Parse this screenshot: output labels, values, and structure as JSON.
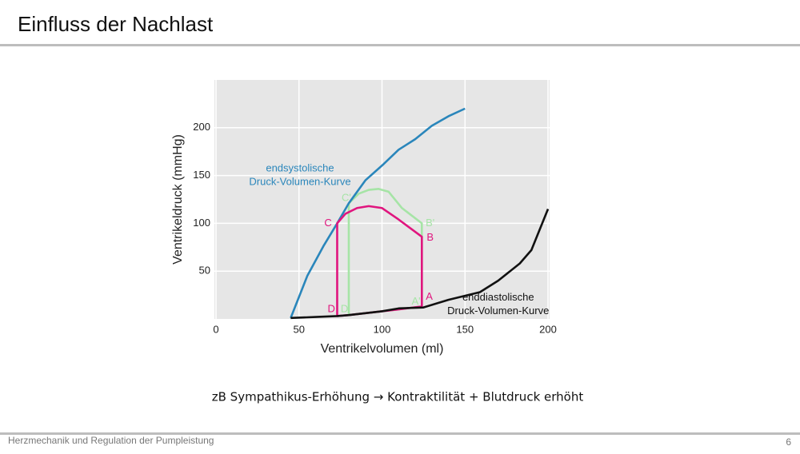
{
  "slide": {
    "title": "Einfluss der Nachlast",
    "caption": "zB  Sympathikus-Erhöhung  → Kontraktilität + Blutdruck erhöht",
    "footer": "Herzmechanik und Regulation der Pumpleistung",
    "page": "6"
  },
  "chart_data": {
    "type": "line",
    "xlabel": "Ventrikelvolumen (ml)",
    "ylabel": "Ventrikeldruck (mmHg)",
    "xlim": [
      0,
      200
    ],
    "ylim": [
      0,
      250
    ],
    "xticks": [
      0,
      50,
      100,
      150,
      200
    ],
    "yticks": [
      50,
      100,
      150,
      200
    ],
    "grid": true,
    "series": [
      {
        "color": "#a6e4a6",
        "x": [
          80,
          80,
          86,
          92,
          98,
          104,
          112,
          124,
          124,
          110,
          100,
          90,
          80
        ],
        "values": [
          4,
          121,
          131,
          135,
          136,
          133,
          116,
          100,
          13,
          10,
          8,
          6,
          4
        ]
      },
      {
        "color": "#2a86bb",
        "x": [
          45,
          55,
          65,
          73,
          80,
          90,
          101,
          110,
          120,
          130,
          140,
          150
        ],
        "values": [
          1,
          45,
          77,
          100,
          121,
          145,
          162,
          177,
          188,
          202,
          212,
          220
        ]
      },
      {
        "color": "#e0157e",
        "x": [
          73,
          73,
          78,
          85,
          92,
          100,
          110,
          124,
          124,
          110,
          100,
          90,
          80,
          73
        ],
        "values": [
          3,
          100,
          110,
          116,
          118,
          116,
          104,
          86,
          13,
          10,
          8,
          6,
          4,
          3
        ]
      },
      {
        "color": "#111111",
        "x": [
          45,
          60,
          73,
          80,
          90,
          100,
          110,
          125,
          140,
          159,
          170,
          183,
          190,
          200
        ],
        "values": [
          1,
          2,
          3,
          4,
          6,
          8,
          11,
          12,
          20,
          28,
          40,
          58,
          72,
          115
        ]
      }
    ],
    "annotations": [
      {
        "text": "endsystolische",
        "x": 50.6,
        "y": 157,
        "color": "#2a86bb"
      },
      {
        "text": "Druck-Volumen-Kurve",
        "x": 50.6,
        "y": 143,
        "color": "#2a86bb"
      },
      {
        "text": "enddiastolische",
        "x": 170,
        "y": 22,
        "color": "#111111"
      },
      {
        "text": "Druck-Volumen-Kurve",
        "x": 170,
        "y": 8,
        "color": "#111111"
      },
      {
        "text": "C",
        "x": 67.5,
        "y": 100,
        "color": "#e0157e"
      },
      {
        "text": "C'",
        "x": 78.5,
        "y": 126,
        "color": "#a6e4a6"
      },
      {
        "text": "B'",
        "x": 129,
        "y": 100,
        "color": "#a6e4a6"
      },
      {
        "text": "B",
        "x": 129,
        "y": 85,
        "color": "#e0157e"
      },
      {
        "text": "A",
        "x": 128.5,
        "y": 23,
        "color": "#e0157e"
      },
      {
        "text": "A'",
        "x": 120.5,
        "y": 18,
        "color": "#a6e4a6"
      },
      {
        "text": "D",
        "x": 69.5,
        "y": 10,
        "color": "#e0157e"
      },
      {
        "text": "D'",
        "x": 78,
        "y": 10,
        "color": "#a6e4a6"
      }
    ]
  }
}
